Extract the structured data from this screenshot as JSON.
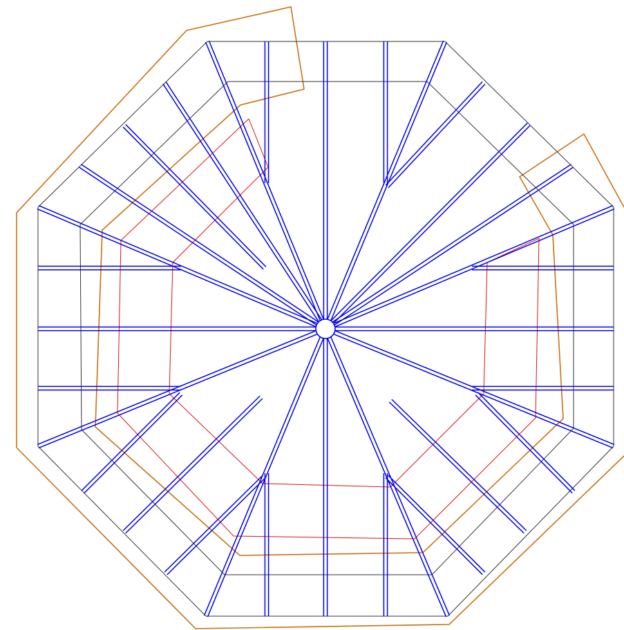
{
  "drawing": {
    "kind": "octagonal roof framing plan",
    "labels": [],
    "colors": {
      "background": "#ffffff",
      "outline": "#333333",
      "rafters": "#0000ee",
      "boundary": "#c8710f",
      "ridge": "#dd1111"
    },
    "counts": {
      "radial_rafters": 16,
      "jack_rafters": 12,
      "outline_rings": 2,
      "hub_circles": 1
    }
  }
}
